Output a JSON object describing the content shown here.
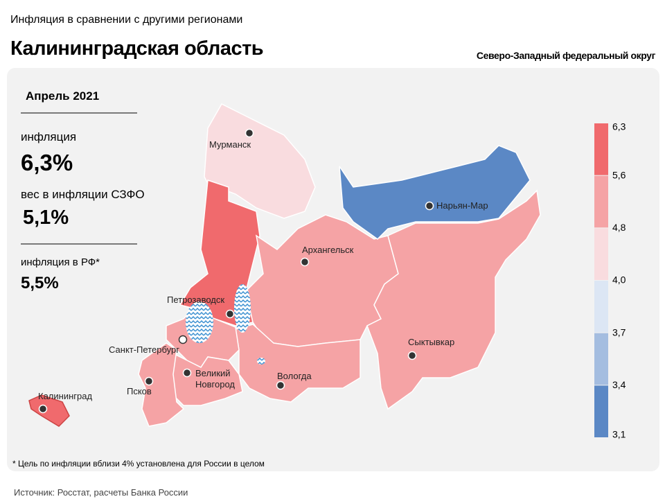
{
  "header": {
    "subtitle": "Инфляция в сравнении с другими регионами",
    "title": "Калининградская область",
    "district": "Северо-Западный федеральный округ"
  },
  "panel": {
    "period": "Апрель 2021",
    "inflation_label": "инфляция",
    "inflation_value": "6,3%",
    "weight_label": "вес в инфляции СЗФО",
    "weight_value": "5,1%",
    "rf_label": "инфляция в РФ*",
    "rf_value": "5,5%"
  },
  "legend": {
    "ticks": [
      {
        "value": 6.3,
        "label": "6,3"
      },
      {
        "value": 5.6,
        "label": "5,6"
      },
      {
        "value": 4.8,
        "label": "4,8"
      },
      {
        "value": 4.0,
        "label": "4,0"
      },
      {
        "value": 3.7,
        "label": "3,7"
      },
      {
        "value": 3.4,
        "label": "3,4"
      },
      {
        "value": 3.1,
        "label": "3,1"
      }
    ],
    "colors": [
      "#f06a6d",
      "#f5a3a5",
      "#f9dcdf",
      "#dce6f4",
      "#a4bde0",
      "#5b88c5"
    ]
  },
  "cities": [
    "Мурманск",
    "Архангельск",
    "Нарьян-Мар",
    "Петрозаводск",
    "Санкт-Петербург",
    "Сыктывкар",
    "Вологда",
    "Великий Новгород",
    "Псков",
    "Калининград"
  ],
  "footnote": "* Цель по инфляции вблизи 4% установлена для России в целом",
  "source": "Источник: Росстат, расчеты Банка России"
}
